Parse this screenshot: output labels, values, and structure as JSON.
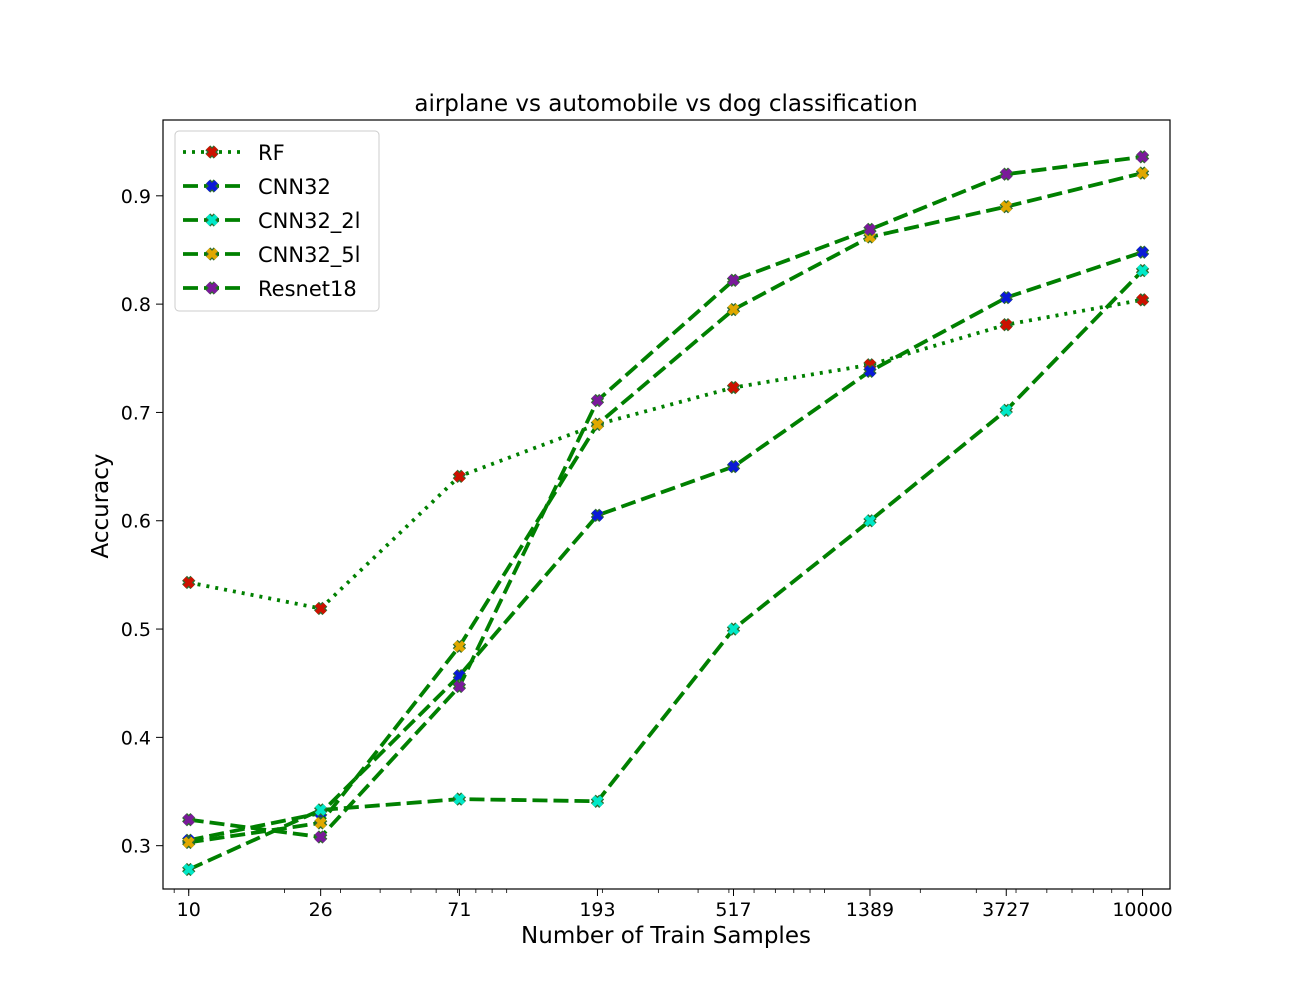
{
  "chart_data": {
    "type": "line",
    "title": "airplane vs automobile vs dog classification",
    "xlabel": "Number of Train Samples",
    "ylabel": "Accuracy",
    "x_scale": "log",
    "x": [
      10,
      26,
      71,
      193,
      517,
      1389,
      3727,
      10000
    ],
    "x_tick_labels": [
      "10",
      "26",
      "71",
      "193",
      "517",
      "1389",
      "3727",
      "10000"
    ],
    "xlim": [
      8.3,
      12200
    ],
    "ylim": [
      0.26,
      0.97
    ],
    "y_ticks": [
      0.3,
      0.4,
      0.5,
      0.6,
      0.7,
      0.8,
      0.9
    ],
    "y_tick_labels": [
      "0.3",
      "0.4",
      "0.5",
      "0.6",
      "0.7",
      "0.8",
      "0.9"
    ],
    "line_color": "#008000",
    "legend_position": "top-left",
    "grid": false,
    "series": [
      {
        "name": "RF",
        "style": "dotted",
        "marker_color": "#cc1100",
        "values": [
          0.543,
          0.519,
          0.641,
          0.689,
          0.723,
          0.744,
          0.781,
          0.804
        ]
      },
      {
        "name": "CNN32",
        "style": "dashed",
        "marker_color": "#0a1ad6",
        "values": [
          0.305,
          0.33,
          0.457,
          0.605,
          0.65,
          0.738,
          0.806,
          0.848
        ]
      },
      {
        "name": "CNN32_2l",
        "style": "dashed",
        "marker_color": "#00e8c8",
        "values": [
          0.278,
          0.333,
          0.343,
          0.341,
          0.5,
          0.6,
          0.702,
          0.831
        ]
      },
      {
        "name": "CNN32_5l",
        "style": "dashed",
        "marker_color": "#e0a800",
        "values": [
          0.303,
          0.321,
          0.484,
          0.689,
          0.795,
          0.862,
          0.89,
          0.921
        ]
      },
      {
        "name": "Resnet18",
        "style": "dashed",
        "marker_color": "#7a1a9a",
        "values": [
          0.324,
          0.308,
          0.447,
          0.711,
          0.822,
          0.869,
          0.92,
          0.936
        ]
      }
    ]
  }
}
